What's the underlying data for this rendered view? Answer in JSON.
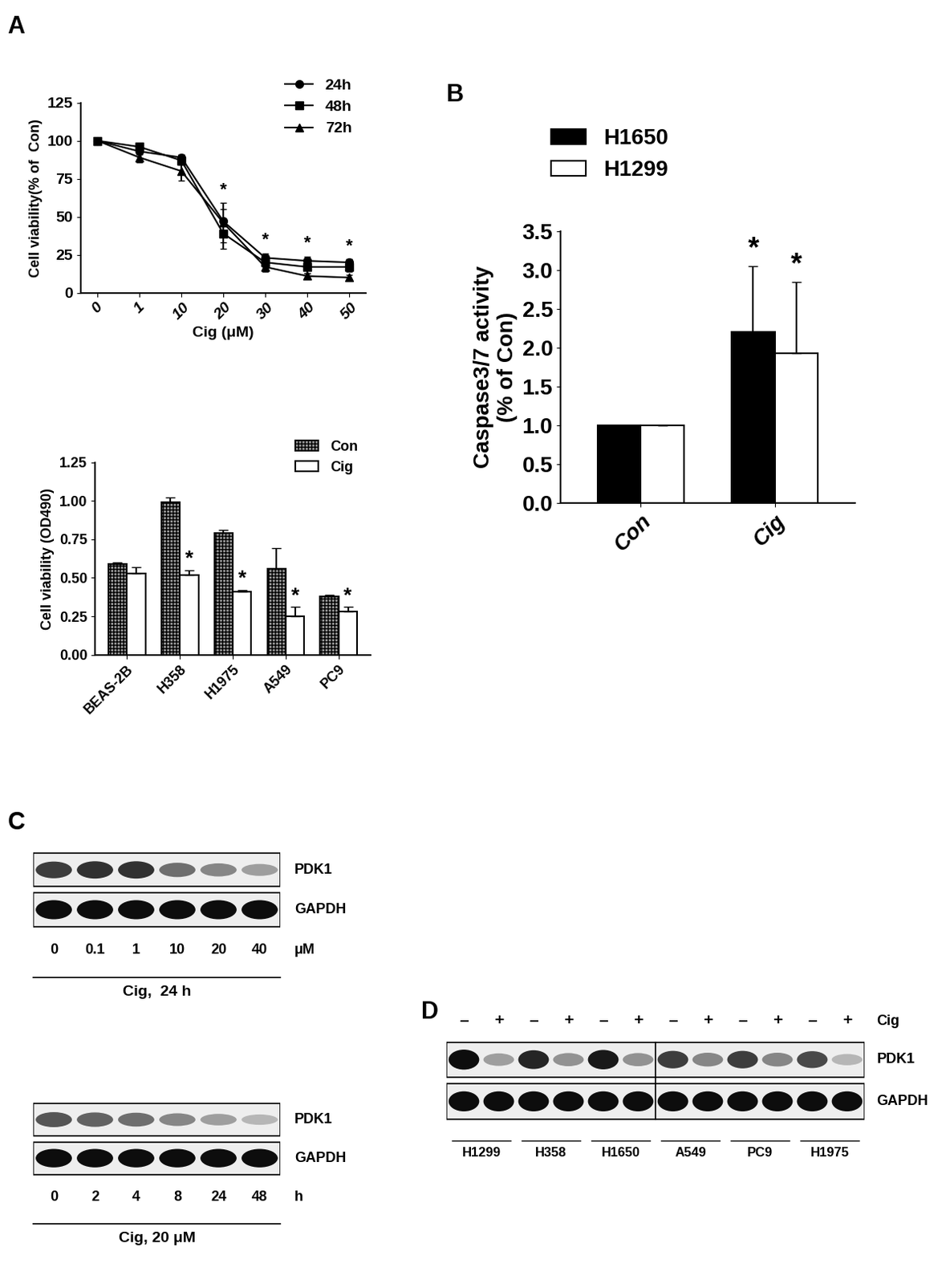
{
  "chart_data": [
    {
      "type": "line",
      "panel_label": "A",
      "x_label": "Cig (μM)",
      "y_label": "Cell viability(% of  Con)",
      "categories": [
        "0",
        "1",
        "10",
        "20",
        "30",
        "40",
        "50"
      ],
      "ylim": [
        0,
        125
      ],
      "yticks": [
        0,
        25,
        50,
        75,
        100,
        125
      ],
      "legend": "upper right",
      "significance": [
        null,
        null,
        null,
        "*",
        "*",
        "*",
        "*"
      ],
      "series": [
        {
          "name": "24h",
          "color": "#000000",
          "marker": "circle",
          "values": [
            100,
            93,
            89,
            47,
            23,
            21,
            20
          ],
          "errors": [
            0,
            2,
            2,
            8,
            3,
            3,
            2
          ]
        },
        {
          "name": "48h",
          "color": "#000000",
          "marker": "square",
          "values": [
            100,
            96,
            87,
            39,
            20,
            17,
            17
          ],
          "errors": [
            0,
            2,
            3,
            10,
            3,
            4,
            3
          ]
        },
        {
          "name": "72h",
          "color": "#000000",
          "marker": "triangle",
          "values": [
            100,
            89,
            80,
            46,
            17,
            11,
            10
          ],
          "errors": [
            0,
            3,
            6,
            13,
            3,
            2,
            2
          ]
        }
      ]
    },
    {
      "type": "bar",
      "y_label": "Cell viability (OD490)",
      "categories": [
        "BEAS-2B",
        "H358",
        "H1975",
        "A549",
        "PC9"
      ],
      "ylim": [
        0,
        1.25
      ],
      "yticks": [
        {
          "value": 0,
          "label": "0.00"
        },
        {
          "value": 0.25,
          "label": "0.25"
        },
        {
          "value": 0.5,
          "label": "0.50"
        },
        {
          "value": 0.75,
          "label": "0.75"
        },
        {
          "value": 1.0,
          "label": "1.00"
        },
        {
          "value": 1.25,
          "label": "1.25"
        }
      ],
      "legend": "upper right",
      "series": [
        {
          "name": "Con",
          "color": "#9a9a9a",
          "values": [
            0.59,
            0.99,
            0.79,
            0.56,
            0.38
          ],
          "errors": [
            0.01,
            0.03,
            0.02,
            0.13,
            0.01
          ],
          "significance": [
            null,
            null,
            null,
            null,
            null
          ]
        },
        {
          "name": "Cig",
          "color": "#ffffff",
          "values": [
            0.53,
            0.52,
            0.41,
            0.25,
            0.28
          ],
          "errors": [
            0.04,
            0.03,
            0.01,
            0.06,
            0.03
          ],
          "significance": [
            null,
            "*",
            "*",
            "*",
            "*"
          ]
        }
      ]
    },
    {
      "type": "bar",
      "panel_label": "B",
      "y_label": "Caspase3/7 activity\n(% of Con)",
      "categories": [
        "Con",
        "Cig"
      ],
      "ylim": [
        0,
        3.5
      ],
      "yticks": [
        {
          "value": 0,
          "label": "0.0"
        },
        {
          "value": 0.5,
          "label": "0.5"
        },
        {
          "value": 1.0,
          "label": "1.0"
        },
        {
          "value": 1.5,
          "label": "1.5"
        },
        {
          "value": 2.0,
          "label": "2.0"
        },
        {
          "value": 2.5,
          "label": "2.5"
        },
        {
          "value": 3.0,
          "label": "3.0"
        },
        {
          "value": 3.5,
          "label": "3.5"
        }
      ],
      "legend": "upper left",
      "series": [
        {
          "name": "H1650",
          "color": "#000000",
          "values": [
            1.0,
            2.2
          ],
          "errors": [
            0,
            0.85
          ],
          "significance": [
            null,
            "*"
          ]
        },
        {
          "name": "H1299",
          "color": "#ffffff",
          "values": [
            1.0,
            1.93
          ],
          "errors": [
            0,
            0.92
          ],
          "significance": [
            null,
            "*"
          ]
        }
      ]
    },
    {
      "type": "blot",
      "panel_label": "C",
      "lanes": [
        "0",
        "0.1",
        "1",
        "10",
        "20",
        "40"
      ],
      "lane_unit": "μM",
      "caption": "Cig,  24 h",
      "rows": [
        {
          "name": "PDK1",
          "values": [
            0.8,
            0.85,
            0.85,
            0.6,
            0.5,
            0.4
          ]
        },
        {
          "name": "GAPDH",
          "values": [
            1,
            1,
            1,
            1,
            1,
            1
          ]
        }
      ]
    },
    {
      "type": "blot",
      "lanes": [
        "0",
        "2",
        "4",
        "8",
        "24",
        "48"
      ],
      "lane_unit": "h",
      "caption": "Cig, 20 μM",
      "rows": [
        {
          "name": "PDK1",
          "values": [
            0.7,
            0.65,
            0.6,
            0.5,
            0.4,
            0.3
          ]
        },
        {
          "name": "GAPDH",
          "values": [
            1,
            1,
            1,
            1,
            1,
            1
          ]
        }
      ]
    },
    {
      "type": "blot",
      "panel_label": "D",
      "lanes": [
        "–",
        "+",
        "–",
        "+",
        "–",
        "+",
        "–",
        "+",
        "–",
        "+",
        "–",
        "+"
      ],
      "lane_header": "Cig",
      "groups": [
        {
          "name": "H1299",
          "lanes": 2
        },
        {
          "name": "H358",
          "lanes": 2
        },
        {
          "name": "H1650",
          "lanes": 2
        },
        {
          "name": "A549",
          "lanes": 2
        },
        {
          "name": "PC9",
          "lanes": 2
        },
        {
          "name": "H1975",
          "lanes": 2
        }
      ],
      "rows": [
        {
          "name": "PDK1",
          "values": [
            1,
            0.4,
            0.9,
            0.45,
            0.95,
            0.45,
            0.8,
            0.5,
            0.8,
            0.5,
            0.75,
            0.3
          ]
        },
        {
          "name": "GAPDH",
          "values": [
            1,
            1,
            1,
            1,
            1,
            1,
            1,
            1,
            1,
            1,
            1,
            1
          ]
        }
      ]
    }
  ]
}
